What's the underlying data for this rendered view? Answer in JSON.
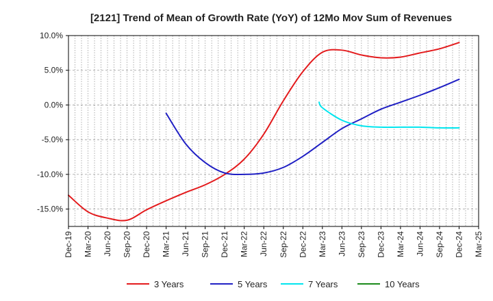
{
  "chart_data": {
    "type": "line",
    "title": "[2121]  Trend of Mean of Growth Rate (YoY) of 12Mo Mov Sum of Revenues",
    "xlabel": "",
    "ylabel": "",
    "ylim": [
      -17.5,
      10.0
    ],
    "yticks": [
      10.0,
      5.0,
      0.0,
      -5.0,
      -10.0,
      -15.0
    ],
    "ytick_labels": [
      "10.0%",
      "5.0%",
      "0.0%",
      "-5.0%",
      "-10.0%",
      "-15.0%"
    ],
    "xtick_labels": [
      "Dec-19",
      "Mar-20",
      "Jun-20",
      "Sep-20",
      "Dec-20",
      "Mar-21",
      "Jun-21",
      "Sep-21",
      "Dec-21",
      "Mar-22",
      "Jun-22",
      "Sep-22",
      "Dec-22",
      "Mar-23",
      "Jun-23",
      "Sep-23",
      "Dec-23",
      "Mar-24",
      "Jun-24",
      "Sep-24",
      "Dec-24",
      "Mar-25"
    ],
    "x_unit": "months since Dec-19",
    "xlim": [
      0,
      63
    ],
    "grid": true,
    "legend_position": "bottom",
    "series": [
      {
        "name": "3 Years",
        "color": "#e31a1c",
        "x": [
          0,
          3,
          6,
          9,
          12,
          15,
          18,
          21,
          24,
          27,
          30,
          33,
          36,
          39,
          42,
          45,
          48,
          51,
          54,
          57,
          60
        ],
        "y": [
          -13.0,
          -15.4,
          -16.3,
          -16.6,
          -15.1,
          -13.8,
          -12.6,
          -11.5,
          -10.0,
          -7.8,
          -4.2,
          0.6,
          4.8,
          7.6,
          7.9,
          7.2,
          6.8,
          6.9,
          7.5,
          8.1,
          9.0
        ]
      },
      {
        "name": "5 Years",
        "color": "#1f1fc4",
        "x": [
          15,
          18,
          21,
          24,
          27,
          30,
          33,
          36,
          39,
          42,
          45,
          48,
          51,
          54,
          57,
          60
        ],
        "y": [
          -1.2,
          -5.6,
          -8.3,
          -9.8,
          -10.0,
          -9.8,
          -9.0,
          -7.4,
          -5.4,
          -3.4,
          -2.0,
          -0.6,
          0.4,
          1.4,
          2.5,
          3.7
        ]
      },
      {
        "name": "7 Years",
        "color": "#00e5ee",
        "x": [
          38.5,
          39,
          42,
          45,
          48,
          51,
          54,
          57,
          60
        ],
        "y": [
          0.4,
          -0.4,
          -2.2,
          -3.0,
          -3.2,
          -3.2,
          -3.2,
          -3.3,
          -3.3
        ]
      },
      {
        "name": "10 Years",
        "color": "#1a8a1a",
        "x": [],
        "y": []
      }
    ]
  }
}
